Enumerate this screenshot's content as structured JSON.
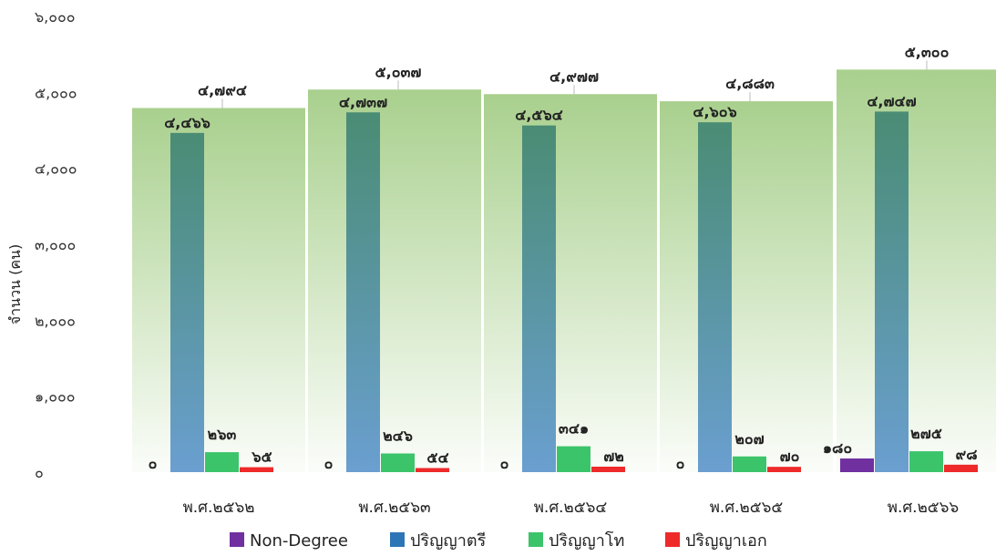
{
  "chart_data": {
    "type": "bar",
    "ylabel": "จำนวน (คน)",
    "ylim": [
      0,
      6000
    ],
    "yticks": [
      "๐",
      "๑,๐๐๐",
      "๒,๐๐๐",
      "๓,๐๐๐",
      "๔,๐๐๐",
      "๕,๐๐๐",
      "๖,๐๐๐"
    ],
    "categories": [
      "พ.ศ.๒๕๖๒",
      "พ.ศ.๒๕๖๓",
      "พ.ศ.๒๕๖๔",
      "พ.ศ.๒๕๖๕",
      "พ.ศ.๒๕๖๖"
    ],
    "totals": {
      "values": [
        4794,
        5037,
        4977,
        4883,
        5300
      ],
      "labels": [
        "๔,๗๙๔",
        "๕,๐๓๗",
        "๔,๙๗๗",
        "๔,๘๘๓",
        "๕,๓๐๐"
      ],
      "color": "#a9d08e"
    },
    "series": [
      {
        "name": "Non-Degree",
        "color": "#7030a0",
        "values": [
          0,
          0,
          0,
          0,
          180
        ],
        "labels": [
          "๐",
          "๐",
          "๐",
          "๐",
          "๑๘๐"
        ]
      },
      {
        "name": "ปริญญาตรี",
        "color": "#2e75b6",
        "values": [
          4466,
          4737,
          4564,
          4606,
          4747
        ],
        "labels": [
          "๔,๔๖๖",
          "๔,๗๓๗",
          "๔,๕๖๔",
          "๔,๖๐๖",
          "๔,๗๔๗"
        ]
      },
      {
        "name": "ปริญญาโท",
        "color": "#3cc46b",
        "values": [
          263,
          246,
          341,
          207,
          275
        ],
        "labels": [
          "๒๖๓",
          "๒๔๖",
          "๓๔๑",
          "๒๐๗",
          "๒๗๕"
        ]
      },
      {
        "name": "ปริญญาเอก",
        "color": "#ee2a2a",
        "values": [
          65,
          54,
          72,
          70,
          98
        ],
        "labels": [
          "๖๕",
          "๕๔",
          "๗๒",
          "๗๐",
          "๙๘"
        ]
      }
    ],
    "legend": "bottom",
    "grid": false
  }
}
